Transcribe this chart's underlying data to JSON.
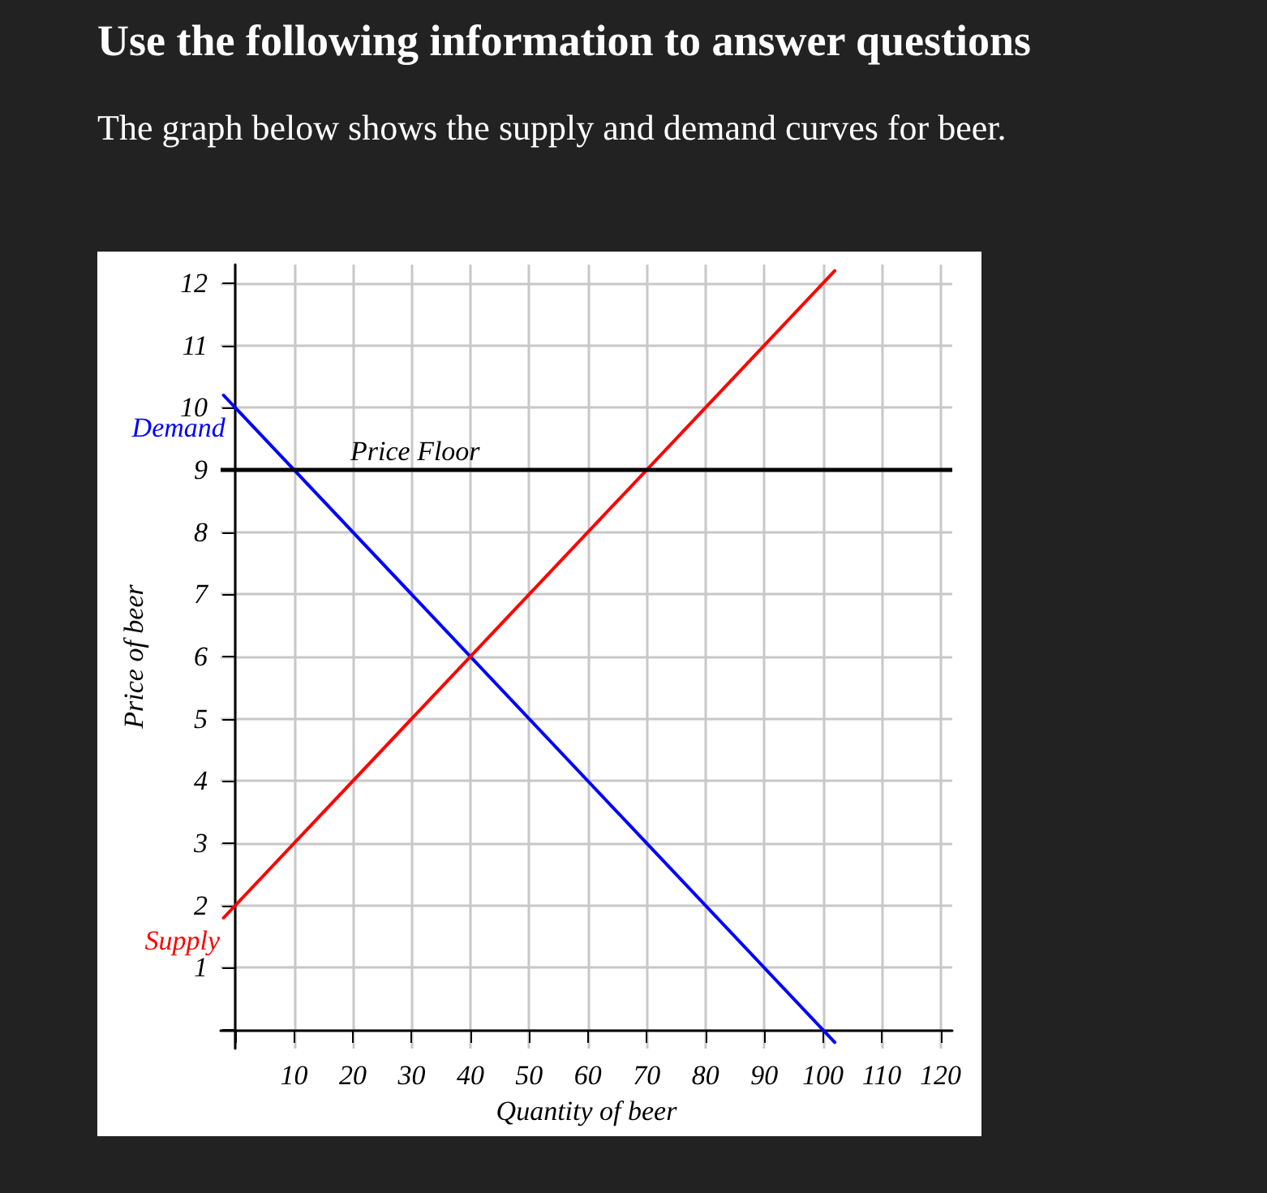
{
  "chart_data": {
    "type": "line",
    "title": "Use the following information to answer questions",
    "subtitle": "The graph below shows the supply and demand curves for beer.",
    "xlabel": "Quantity of beer",
    "ylabel": "Price of beer",
    "x": [
      -2,
      102
    ],
    "series": [
      {
        "name": "Demand",
        "color": "#0000ff",
        "values": [
          10.2,
          -0.2
        ]
      },
      {
        "name": "Supply",
        "color": "#ff0000",
        "values": [
          1.8,
          12.2
        ]
      }
    ],
    "xlim": [
      -2.5,
      122
    ],
    "xticks": [
      {
        "value": 0,
        "label": null
      },
      10,
      20,
      30,
      40,
      50,
      60,
      70,
      80,
      90,
      100,
      110,
      120
    ],
    "ylim": [
      -0.3,
      12.3
    ],
    "yticks": [
      {
        "value": 0,
        "label": null
      },
      1,
      2,
      3,
      4,
      5,
      6,
      7,
      8,
      9,
      10,
      11,
      12
    ],
    "ref_lines": [
      {
        "axis": "y",
        "value": 9,
        "label": "Price Floor",
        "color": "#000000",
        "line_style": "solid"
      }
    ],
    "grid": true,
    "legend": false,
    "marker": "none",
    "line_style": "solid"
  }
}
